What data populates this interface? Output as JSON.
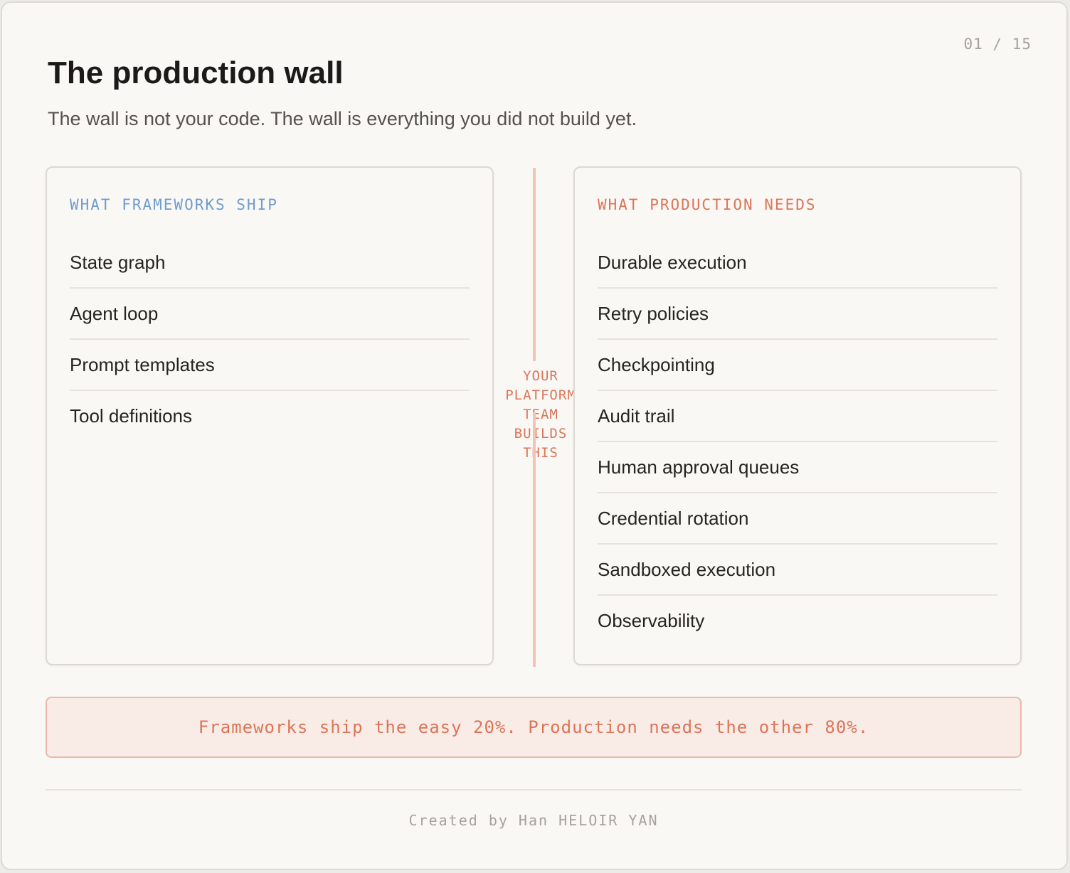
{
  "slide": {
    "page_counter": "01 / 15",
    "title": "The production wall",
    "subtitle": "The wall is not your code. The wall is everything you did not build yet."
  },
  "left_panel": {
    "heading": "WHAT FRAMEWORKS SHIP",
    "items": [
      "State graph",
      "Agent loop",
      "Prompt templates",
      "Tool definitions"
    ]
  },
  "right_panel": {
    "heading": "WHAT PRODUCTION NEEDS",
    "items": [
      "Durable execution",
      "Retry policies",
      "Checkpointing",
      "Audit trail",
      "Human approval queues",
      "Credential rotation",
      "Sandboxed execution",
      "Observability"
    ]
  },
  "divider": {
    "lines": [
      "YOUR",
      "PLATFORM",
      "TEAM",
      "BUILDS",
      "THIS"
    ]
  },
  "callout": {
    "text": "Frameworks ship the easy 20%. Production needs the other 80%."
  },
  "footer": {
    "credit": "Created by Han HELOIR YAN"
  },
  "colors": {
    "accent_blue": "#6f9ccd",
    "accent_coral": "#dc7558",
    "background": "#faf8f5"
  }
}
